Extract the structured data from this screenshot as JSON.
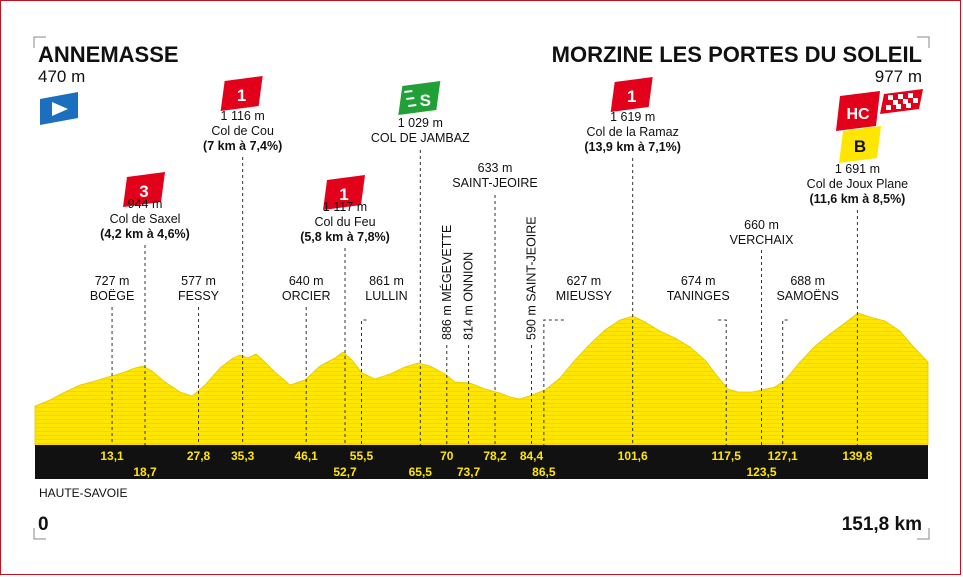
{
  "start": {
    "name": "ANNEMASSE",
    "altitude": "470 m"
  },
  "finish": {
    "name": "MORZINE LES PORTES DU SOLEIL",
    "altitude": "977 m"
  },
  "region": "HAUTE-SAVOIE",
  "distance_start": "0",
  "distance_total": "151,8 km",
  "colors": {
    "yellow": "#ffe600",
    "black": "#111111",
    "red": "#e3001b",
    "green": "#21a038",
    "blue": "#1a6fbf"
  },
  "climbs": [
    {
      "cat": "3",
      "alt": "944 m",
      "name": "Col de Saxel",
      "detail": "(4,2 km à 4,6%)",
      "km": 18.7
    },
    {
      "cat": "1",
      "alt": "1 116 m",
      "name": "Col de Cou",
      "detail": "(7 km à 7,4%)",
      "km": 35.3
    },
    {
      "cat": "1",
      "alt": "1 117 m",
      "name": "Col du Feu",
      "detail": "(5,8 km à 7,8%)",
      "km": 52.7
    },
    {
      "cat": "1",
      "alt": "1 619 m",
      "name": "Col de la Ramaz",
      "detail": "(13,9 km à 7,1%)",
      "km": 101.6
    },
    {
      "cat": "HC",
      "alt": "1 691 m",
      "name": "Col de Joux Plane",
      "detail": "(11,6 km à 8,5%)",
      "km": 139.8
    }
  ],
  "sprint": {
    "icon": "S",
    "alt": "1 029 m",
    "name": "COL DE JAMBAZ",
    "km": 65.5
  },
  "bonus": {
    "label": "B"
  },
  "towns": [
    {
      "alt": "727 m",
      "name": "BOËGE",
      "km": 13.1
    },
    {
      "alt": "577 m",
      "name": "FESSY",
      "km": 27.8
    },
    {
      "alt": "640 m",
      "name": "ORCIER",
      "km": 46.1
    },
    {
      "alt": "861 m",
      "name": "LULLIN",
      "km": 55.5
    },
    {
      "alt": "886 m",
      "name": "MÉGEVETTE",
      "km": 70,
      "vertical": true
    },
    {
      "alt": "814 m",
      "name": "ONNION",
      "km": 73.7,
      "vertical": true
    },
    {
      "alt": "633 m",
      "name": "SAINT-JEOIRE",
      "km": 78.2
    },
    {
      "alt": "590 m",
      "name": "SAINT-JEOIRE",
      "km": 84.4,
      "vertical": true
    },
    {
      "alt": "627 m",
      "name": "MIEUSSY",
      "km": 86.5
    },
    {
      "alt": "674 m",
      "name": "TANINGES",
      "km": 117.5
    },
    {
      "alt": "660 m",
      "name": "VERCHAIX",
      "km": 123.5
    },
    {
      "alt": "688 m",
      "name": "SAMOËNS",
      "km": 127.1
    }
  ],
  "km_top": [
    "13,1",
    "27,8",
    "35,3",
    "46,1",
    "55,5",
    "70",
    "78,2",
    "84,4",
    "101,6",
    "117,5",
    "127,1",
    "139,8"
  ],
  "km_bottom": [
    "18,7",
    "52,7",
    "65,5",
    "73,7",
    "86,5",
    "123,5"
  ]
}
